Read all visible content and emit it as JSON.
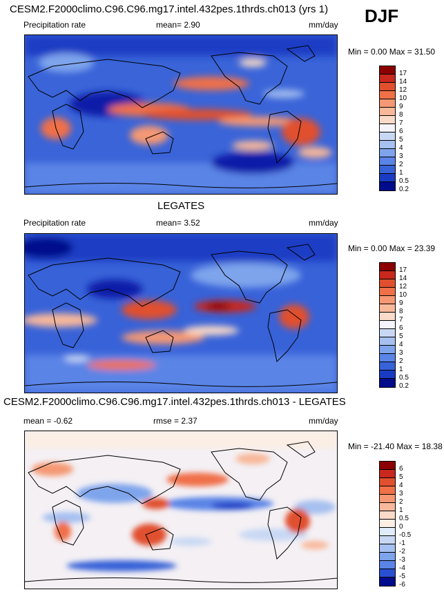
{
  "season": "DJF",
  "panels": [
    {
      "title": "CESM2.F2000climo.C96.C96.mg17.intel.432pes.1thrds.ch013 (yrs 1)",
      "left_label": "Precipitation rate",
      "center_label": "mean=   2.90",
      "units": "mm/day",
      "minmax": "Min =    0.00 Max =  31.50",
      "colorbar_labels": [
        "17",
        "14",
        "12",
        "10",
        "9",
        "8",
        "7",
        "6",
        "5",
        "4",
        "3",
        "2",
        "1",
        "0.5",
        "0.2"
      ]
    },
    {
      "title": "LEGATES",
      "left_label": "Precipitation rate",
      "center_label": "mean=   3.52",
      "units": "mm/day",
      "minmax": "Min =    0.00 Max =  23.39",
      "colorbar_labels": [
        "17",
        "14",
        "12",
        "10",
        "9",
        "8",
        "7",
        "6",
        "5",
        "4",
        "3",
        "2",
        "1",
        "0.5",
        "0.2"
      ]
    },
    {
      "title": "CESM2.F2000climo.C96.C96.mg17.intel.432pes.1thrds.ch013 - LEGATES",
      "left_label": "mean =  -0.62",
      "center_label": "rmse =   2.37",
      "units": "mm/day",
      "minmax": "Min = -21.40 Max =  18.38",
      "colorbar_labels": [
        "6",
        "5",
        "4",
        "3",
        "2",
        "1",
        "0.5",
        "0",
        "-0.5",
        "-1",
        "-2",
        "-3",
        "-4",
        "-5",
        "-6"
      ]
    }
  ],
  "colors": {
    "precip_scale": [
      "#8b0000",
      "#c8281e",
      "#e0502e",
      "#f07048",
      "#f59873",
      "#f8b89a",
      "#fadac8",
      "#f4f4fa",
      "#c8d8f4",
      "#a6c0f0",
      "#7ea4ec",
      "#5a84e6",
      "#3862d8",
      "#1a3cc4",
      "#000c8c"
    ],
    "diff_scale": [
      "#8b0000",
      "#c8281e",
      "#e0502e",
      "#f07048",
      "#f59873",
      "#f8b89a",
      "#fadac8",
      "#fbeee4",
      "#e0ecfa",
      "#c8d8f4",
      "#a6c0f0",
      "#7ea4ec",
      "#5a84e6",
      "#2850d0",
      "#000c8c"
    ]
  }
}
